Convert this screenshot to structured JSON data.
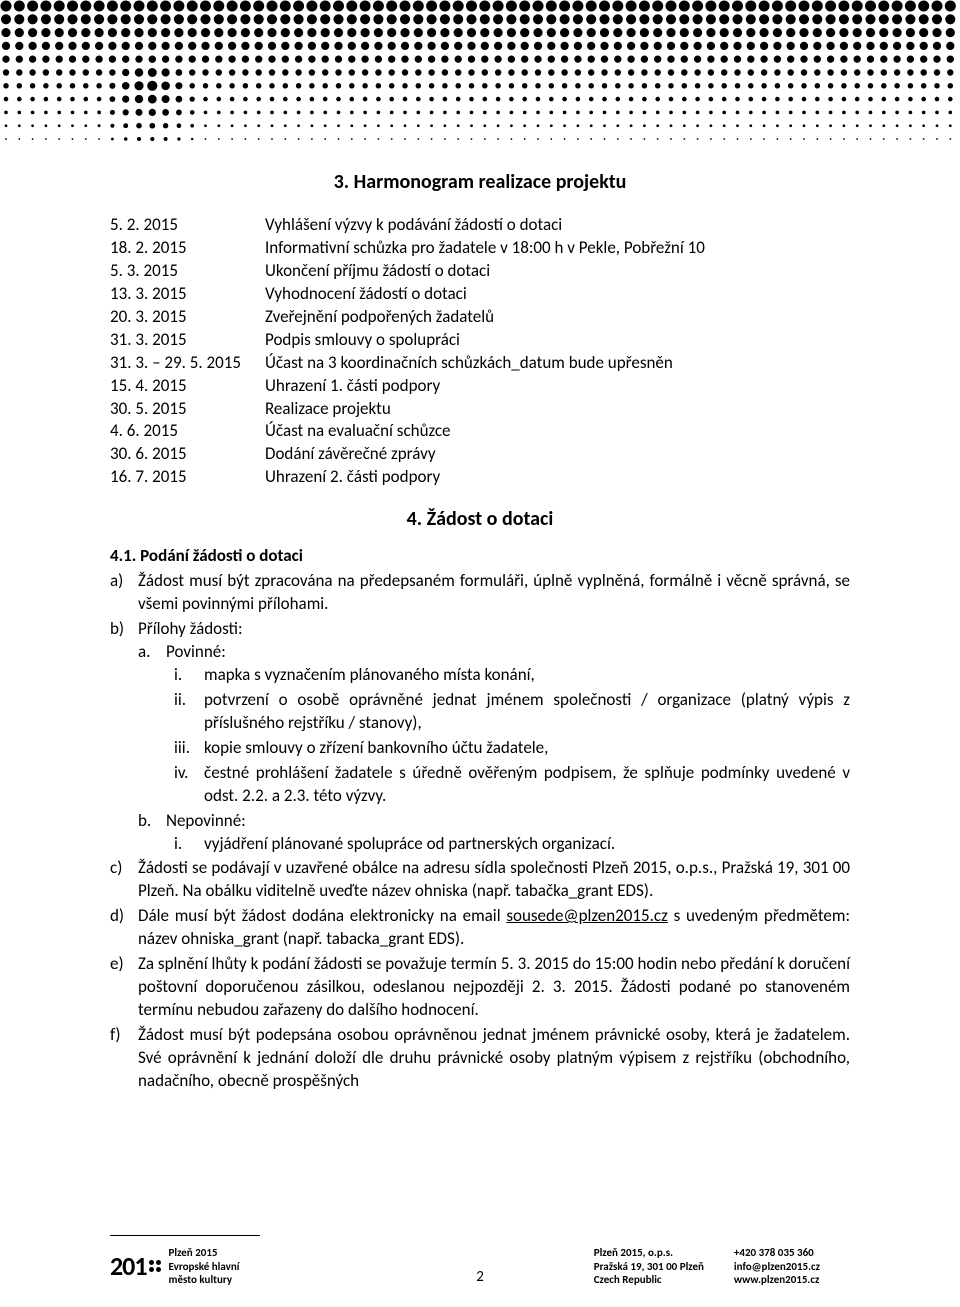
{
  "header_pattern": {
    "rows": 10,
    "cols": 72,
    "max_radius": 5.5,
    "spacing": 13.3,
    "color": "#000000"
  },
  "section3": {
    "title": "3. Harmonogram realizace projektu",
    "schedule": [
      {
        "date": "5. 2. 2015",
        "desc": "Vyhlášení výzvy k podávání žádostí o dotaci"
      },
      {
        "date": "18. 2. 2015",
        "desc": "Informativní schůzka pro žadatele v 18:00 h v Pekle, Pobřežní 10"
      },
      {
        "date": "5. 3. 2015",
        "desc": "Ukončení příjmu žádostí o dotaci"
      },
      {
        "date": "13. 3. 2015",
        "desc": "Vyhodnocení žádostí o dotaci"
      },
      {
        "date": "20. 3. 2015",
        "desc": "Zveřejnění podpořených žadatelů"
      },
      {
        "date": "31. 3. 2015",
        "desc": "Podpis smlouvy o spolupráci"
      },
      {
        "date": "31. 3. – 29. 5. 2015",
        "desc": "Účast na 3 koordinačních schůzkách_datum bude upřesněn"
      },
      {
        "date": "15. 4. 2015",
        "desc": "Uhrazení 1. části podpory"
      },
      {
        "date": "30. 5. 2015",
        "desc": "Realizace projektu"
      },
      {
        "date": "4. 6. 2015",
        "desc": "Účast na evaluační schůzce"
      },
      {
        "date": "30. 6. 2015",
        "desc": "Dodání závěrečné zprávy"
      },
      {
        "date": "16. 7. 2015",
        "desc": "Uhrazení 2. části podpory"
      }
    ]
  },
  "section4": {
    "title": "4. Žádost o dotaci",
    "sub41": {
      "heading": "4.1. Podání žádosti o dotaci",
      "items": {
        "a": "Žádost musí být zpracována na předepsaném formuláři, úplně vyplněná, formálně i věcně správná, se všemi povinnými přílohami.",
        "b_label": "Přílohy žádosti:",
        "b_a_label": "Povinné:",
        "b_a_i": "mapka s vyznačením plánovaného místa konání,",
        "b_a_ii": "potvrzení o osobě oprávněné jednat jménem společnosti / organizace (platný výpis z příslušného rejstříku / stanovy),",
        "b_a_iii": "kopie smlouvy o zřízení bankovního účtu žadatele,",
        "b_a_iv": "čestné prohlášení žadatele s úředně ověřeným podpisem, že splňuje podmínky uvedené v odst. 2.2. a 2.3. této výzvy.",
        "b_b_label": "Nepovinné:",
        "b_b_i": "vyjádření plánované spolupráce od partnerských organizací.",
        "c": "Žádosti se podávají v uzavřené obálce na adresu sídla společnosti Plzeň 2015, o.p.s., Pražská 19, 301 00 Plzeň. Na obálku viditelně uveďte název ohniska (např. tabačka_grant EDS).",
        "d_pre": "Dále musí být žádost dodána elektronicky na email ",
        "d_link": "sousede@plzen2015.cz",
        "d_post": " s uvedeným předmětem: název ohniska_grant (např. tabacka_grant EDS).",
        "e": "Za splnění lhůty k podání žádosti se považuje termín 5. 3. 2015 do 15:00 hodin nebo předání k doručení poštovní doporučenou zásilkou, odeslanou nejpozději 2. 3. 2015. Žádosti podané po stanoveném termínu nebudou zařazeny do dalšího hodnocení.",
        "f": "Žádost musí být podepsána osobou oprávněnou jednat jménem právnické osoby, která je žadatelem. Své oprávnění k jednání doloží dle druhu právnické osoby platným výpisem z rejstříku (obchodního, nadačního, obecně prospěšných"
      }
    }
  },
  "footer": {
    "page_number": "2",
    "logo_year": "201",
    "logo_text_l1": "Plzeň 2015",
    "logo_text_l2": "Evropské hlavní",
    "logo_text_l3": "město kultury",
    "col1_l1": "Plzeň 2015, o.p.s.",
    "col1_l2": "Pražská 19, 301 00 Plzeň",
    "col1_l3": "Czech Republic",
    "col2_l1": "+420 378 035 360",
    "col2_l2": "info@plzen2015.cz",
    "col2_l3": "www.plzen2015.cz"
  }
}
